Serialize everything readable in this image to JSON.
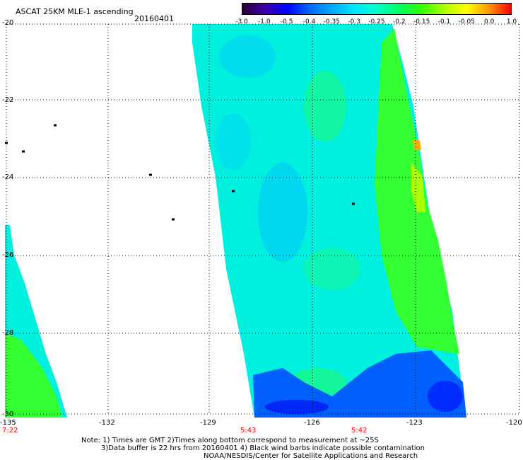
{
  "header": {
    "title": "ASCAT 25KM MLE-1 ascending",
    "date": "20160401"
  },
  "colorbar": {
    "labels": [
      "-3.0",
      "-1.0",
      "-0.5",
      "-0.4",
      "-0.35",
      "-0.3",
      "-0.25",
      "-0.2",
      "-0.15",
      "-0.1",
      "-0.05",
      "0.0",
      "1.0"
    ],
    "colors": [
      "#2a0033",
      "#3d00a8",
      "#0000ff",
      "#0066ff",
      "#00aaff",
      "#00e5ff",
      "#00ffc8",
      "#00ff66",
      "#33ff00",
      "#aaff00",
      "#ffff00",
      "#ff9900",
      "#ff0000"
    ]
  },
  "map": {
    "lat_labels": [
      "-20",
      "-22",
      "-24",
      "-26",
      "-28",
      "-30"
    ],
    "lon_labels": [
      "-135",
      "-132",
      "-129",
      "-126",
      "-123",
      "-120"
    ],
    "time_labels": [
      "7:22",
      "5:43",
      "5:42"
    ],
    "grid_color": "#000000",
    "swath_colors": {
      "main": "#00f0e0",
      "blue": "#0060ff",
      "green": "#33ff33",
      "yellow_green": "#aaff00",
      "orange": "#ffaa00"
    }
  },
  "notes": {
    "line1": "Note: 1) Times are GMT 2)Times along bottom correspond to measurement at ~25S",
    "line2": "3)Data buffer is 22 hrs from 20160401 4) Black wind barbs indicate possible contamination",
    "line3": "NOAA/NESDIS/Center for Satellite Applications and Research"
  }
}
